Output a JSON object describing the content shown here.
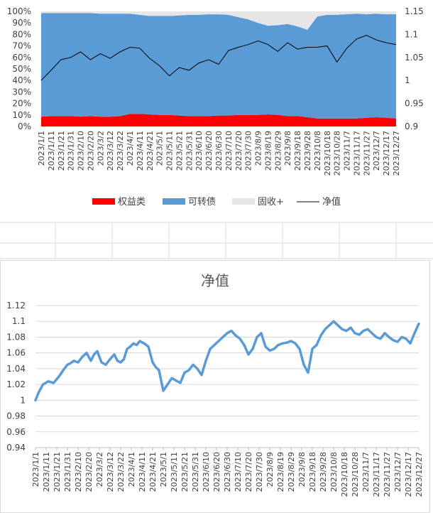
{
  "chart_data": [
    {
      "type": "area",
      "title": "",
      "stacked_percent": true,
      "x_ticks": [
        "2023/1/1",
        "2023/1/11",
        "2023/1/21",
        "2023/1/31",
        "2023/2/10",
        "2023/2/20",
        "2023/3/2",
        "2023/3/12",
        "2023/3/22",
        "2023/4/1",
        "2023/4/11",
        "2023/4/21",
        "2023/5/1",
        "2023/5/11",
        "2023/5/21",
        "2023/5/31",
        "2023/6/10",
        "2023/6/20",
        "2023/6/30",
        "2023/7/10",
        "2023/7/20",
        "2023/7/30",
        "2023/8/9",
        "2023/8/19",
        "2023/8/29",
        "2023/9/8",
        "2023/9/18",
        "2023/9/28",
        "2023/10/8",
        "2023/10/18",
        "2023/10/28",
        "2023/11/7",
        "2023/11/17",
        "2023/11/27",
        "2023/12/7",
        "2023/12/17",
        "2023/12/27"
      ],
      "y_left_ticks": [
        "0%",
        "10%",
        "20%",
        "30%",
        "40%",
        "50%",
        "60%",
        "70%",
        "80%",
        "90%",
        "100%"
      ],
      "y_right_ticks": [
        "0.9",
        "0.95",
        "1",
        "1.05",
        "1.1",
        "1.15"
      ],
      "y_right_range": [
        0.9,
        1.15
      ],
      "legend_position": "bottom",
      "series": [
        {
          "name": "权益类",
          "color": "#ff0000",
          "kind": "area",
          "values": [
            0.085,
            0.09,
            0.09,
            0.09,
            0.085,
            0.09,
            0.085,
            0.085,
            0.09,
            0.11,
            0.11,
            0.105,
            0.1,
            0.1,
            0.095,
            0.09,
            0.09,
            0.09,
            0.095,
            0.095,
            0.1,
            0.1,
            0.1,
            0.105,
            0.1,
            0.09,
            0.09,
            0.08,
            0.07,
            0.07,
            0.07,
            0.07,
            0.07,
            0.075,
            0.08,
            0.075,
            0.07
          ]
        },
        {
          "name": "可转债",
          "color": "#5b9bd5",
          "kind": "area",
          "values": [
            0.9,
            0.895,
            0.895,
            0.895,
            0.9,
            0.895,
            0.895,
            0.895,
            0.89,
            0.87,
            0.86,
            0.855,
            0.86,
            0.86,
            0.87,
            0.88,
            0.88,
            0.885,
            0.88,
            0.875,
            0.85,
            0.83,
            0.8,
            0.77,
            0.78,
            0.8,
            0.78,
            0.76,
            0.885,
            0.9,
            0.9,
            0.905,
            0.91,
            0.9,
            0.9,
            0.9,
            0.905
          ]
        },
        {
          "name": "固收+",
          "color": "#e7e6e6",
          "kind": "area",
          "values": [
            0.015,
            0.015,
            0.015,
            0.015,
            0.015,
            0.015,
            0.02,
            0.02,
            0.02,
            0.02,
            0.03,
            0.04,
            0.04,
            0.04,
            0.035,
            0.03,
            0.03,
            0.025,
            0.025,
            0.03,
            0.05,
            0.07,
            0.1,
            0.125,
            0.12,
            0.11,
            0.13,
            0.16,
            0.045,
            0.03,
            0.03,
            0.025,
            0.02,
            0.025,
            0.02,
            0.025,
            0.025
          ]
        },
        {
          "name": "净值",
          "color": "#000000",
          "kind": "line",
          "axis": "right",
          "values": [
            1.0,
            1.022,
            1.045,
            1.05,
            1.062,
            1.045,
            1.058,
            1.048,
            1.062,
            1.072,
            1.07,
            1.048,
            1.032,
            1.01,
            1.028,
            1.022,
            1.038,
            1.045,
            1.035,
            1.065,
            1.072,
            1.078,
            1.086,
            1.078,
            1.063,
            1.082,
            1.068,
            1.072,
            1.072,
            1.075,
            1.04,
            1.07,
            1.09,
            1.098,
            1.088,
            1.082,
            1.078
          ]
        }
      ]
    },
    {
      "type": "line",
      "title": "净值",
      "x_ticks": [
        "2023/1/1",
        "2023/1/11",
        "2023/1/21",
        "2023/1/31",
        "2023/2/10",
        "2023/2/20",
        "2023/3/2",
        "2023/3/12",
        "2023/3/22",
        "2023/4/1",
        "2023/4/11",
        "2023/4/21",
        "2023/5/1",
        "2023/5/11",
        "2023/5/21",
        "2023/5/31",
        "2023/6/10",
        "2023/6/20",
        "2023/6/30",
        "2023/7/10",
        "2023/7/20",
        "2023/7/30",
        "2023/8/9",
        "2023/8/19",
        "2023/8/29",
        "2023/9/8",
        "2023/9/18",
        "2023/9/28",
        "2023/10/8",
        "2023/10/18",
        "2023/10/28",
        "2023/11/7",
        "2023/11/17",
        "2023/11/27",
        "2023/12/7",
        "2023/12/17",
        "2023/12/27"
      ],
      "y_ticks": [
        "0.94",
        "0.96",
        "0.98",
        "1",
        "1.02",
        "1.04",
        "1.06",
        "1.08",
        "1.1",
        "1.12"
      ],
      "ylim": [
        0.94,
        1.12
      ],
      "grid": true,
      "series": [
        {
          "color": "#5b9bd5",
          "x": [
            0,
            3,
            7,
            12,
            17,
            22,
            26,
            30,
            33,
            36,
            40,
            44,
            48,
            52,
            55,
            58,
            62,
            66,
            70,
            74,
            77,
            80,
            83,
            86,
            89,
            92,
            95,
            98,
            102,
            106,
            110,
            113,
            116,
            120,
            124,
            128,
            132,
            136,
            140,
            144,
            148,
            152,
            156,
            160,
            164,
            168,
            172,
            176,
            180,
            184,
            188,
            192,
            196,
            200,
            204,
            208,
            212,
            216,
            220,
            224,
            228,
            232,
            236,
            240,
            244,
            248,
            252,
            256,
            260,
            264,
            268,
            272,
            276,
            280,
            284,
            288,
            292,
            296,
            300,
            304,
            308,
            312,
            316,
            320,
            324,
            328,
            332,
            336,
            340,
            344,
            348,
            352,
            356,
            360
          ],
          "y": [
            1.0,
            1.01,
            1.02,
            1.024,
            1.022,
            1.03,
            1.038,
            1.045,
            1.047,
            1.05,
            1.048,
            1.055,
            1.06,
            1.05,
            1.058,
            1.062,
            1.048,
            1.045,
            1.052,
            1.058,
            1.05,
            1.048,
            1.052,
            1.065,
            1.068,
            1.072,
            1.07,
            1.075,
            1.072,
            1.068,
            1.048,
            1.042,
            1.038,
            1.012,
            1.02,
            1.028,
            1.025,
            1.022,
            1.035,
            1.038,
            1.045,
            1.04,
            1.032,
            1.05,
            1.065,
            1.07,
            1.075,
            1.08,
            1.085,
            1.088,
            1.082,
            1.078,
            1.07,
            1.058,
            1.065,
            1.08,
            1.085,
            1.068,
            1.063,
            1.065,
            1.07,
            1.072,
            1.073,
            1.075,
            1.072,
            1.065,
            1.045,
            1.035,
            1.065,
            1.07,
            1.082,
            1.09,
            1.095,
            1.1,
            1.095,
            1.09,
            1.088,
            1.092,
            1.085,
            1.083,
            1.088,
            1.09,
            1.085,
            1.08,
            1.078,
            1.085,
            1.08,
            1.076,
            1.074,
            1.08,
            1.078,
            1.072,
            1.085,
            1.097
          ]
        }
      ]
    }
  ]
}
